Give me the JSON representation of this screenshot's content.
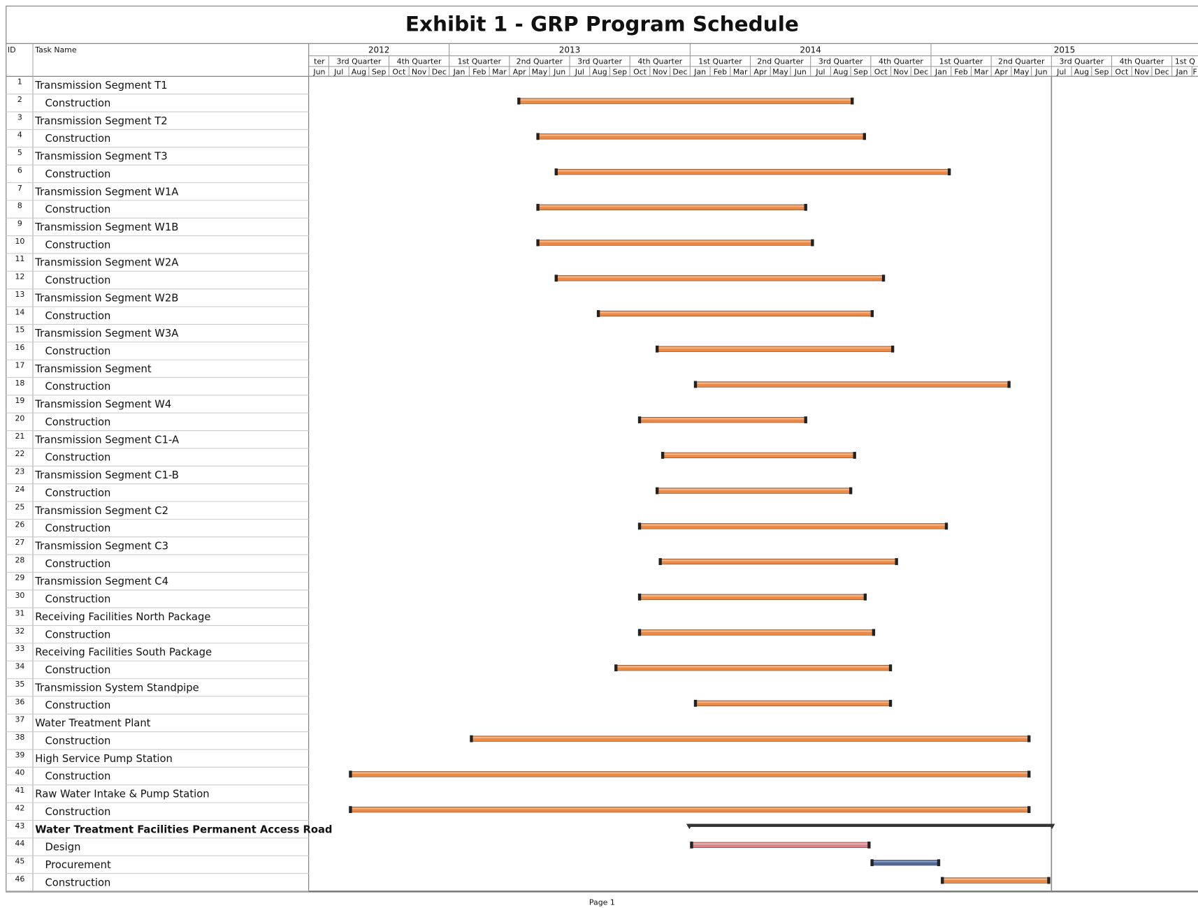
{
  "chart_data": {
    "type": "gantt",
    "title": "Exhibit 1 - GRP Program Schedule",
    "columns": [
      "ID",
      "Task Name"
    ],
    "footer": "Page 1",
    "xlim": [
      2012.4167,
      2016.1083
    ],
    "current_date": 2015.5,
    "year_ticks": [
      {
        "value": 2012.4167,
        "label": "2012"
      },
      2013,
      2014,
      2015
    ],
    "quarter_ticks": [
      {
        "value": 2012.4167,
        "label": "ter"
      },
      {
        "value": 2012.5,
        "label": "3rd Quarter"
      },
      {
        "value": 2012.75,
        "label": "4th Quarter"
      },
      {
        "value": 2013,
        "label": "1st Quarter"
      },
      {
        "value": 2013.25,
        "label": "2nd Quarter"
      },
      {
        "value": 2013.5,
        "label": "3rd Quarter"
      },
      {
        "value": 2013.75,
        "label": "4th Quarter"
      },
      {
        "value": 2014,
        "label": "1st Quarter"
      },
      {
        "value": 2014.25,
        "label": "2nd Quarter"
      },
      {
        "value": 2014.5,
        "label": "3rd Quarter"
      },
      {
        "value": 2014.75,
        "label": "4th Quarter"
      },
      {
        "value": 2015,
        "label": "1st Quarter"
      },
      {
        "value": 2015.25,
        "label": "2nd Quarter"
      },
      {
        "value": 2015.5,
        "label": "3rd Quarter"
      },
      {
        "value": 2015.75,
        "label": "4th Quarter"
      },
      {
        "value": 2016,
        "label": "1st Q"
      }
    ],
    "month_ticks": [
      {
        "value": 2012.4167,
        "label": "Jun"
      },
      {
        "value": 2012.5,
        "label": "Jul"
      },
      {
        "value": 2012.5833,
        "label": "Aug"
      },
      {
        "value": 2012.6667,
        "label": "Sep"
      },
      {
        "value": 2012.75,
        "label": "Oct"
      },
      {
        "value": 2012.8333,
        "label": "Nov"
      },
      {
        "value": 2012.9167,
        "label": "Dec"
      },
      {
        "value": 2013,
        "label": "Jan"
      },
      {
        "value": 2013.0833,
        "label": "Feb"
      },
      {
        "value": 2013.1667,
        "label": "Mar"
      },
      {
        "value": 2013.25,
        "label": "Apr"
      },
      {
        "value": 2013.3333,
        "label": "May"
      },
      {
        "value": 2013.4167,
        "label": "Jun"
      },
      {
        "value": 2013.5,
        "label": "Jul"
      },
      {
        "value": 2013.5833,
        "label": "Aug"
      },
      {
        "value": 2013.6667,
        "label": "Sep"
      },
      {
        "value": 2013.75,
        "label": "Oct"
      },
      {
        "value": 2013.8333,
        "label": "Nov"
      },
      {
        "value": 2013.9167,
        "label": "Dec"
      },
      {
        "value": 2014,
        "label": "Jan"
      },
      {
        "value": 2014.0833,
        "label": "Feb"
      },
      {
        "value": 2014.1667,
        "label": "Mar"
      },
      {
        "value": 2014.25,
        "label": "Apr"
      },
      {
        "value": 2014.3333,
        "label": "May"
      },
      {
        "value": 2014.4167,
        "label": "Jun"
      },
      {
        "value": 2014.5,
        "label": "Jul"
      },
      {
        "value": 2014.5833,
        "label": "Aug"
      },
      {
        "value": 2014.6667,
        "label": "Sep"
      },
      {
        "value": 2014.75,
        "label": "Oct"
      },
      {
        "value": 2014.8333,
        "label": "Nov"
      },
      {
        "value": 2014.9167,
        "label": "Dec"
      },
      {
        "value": 2015,
        "label": "Jan"
      },
      {
        "value": 2015.0833,
        "label": "Feb"
      },
      {
        "value": 2015.1667,
        "label": "Mar"
      },
      {
        "value": 2015.25,
        "label": "Apr"
      },
      {
        "value": 2015.3333,
        "label": "May"
      },
      {
        "value": 2015.4167,
        "label": "Jun"
      },
      {
        "value": 2015.5,
        "label": "Jul"
      },
      {
        "value": 2015.5833,
        "label": "Aug"
      },
      {
        "value": 2015.6667,
        "label": "Sep"
      },
      {
        "value": 2015.75,
        "label": "Oct"
      },
      {
        "value": 2015.8333,
        "label": "Nov"
      },
      {
        "value": 2015.9167,
        "label": "Dec"
      },
      {
        "value": 2016,
        "label": "Jan"
      },
      {
        "value": 2016.0833,
        "label": "F"
      }
    ],
    "tasks": [
      {
        "id": 1,
        "name": "Transmission Segment T1",
        "level": 0
      },
      {
        "id": 2,
        "name": "Construction",
        "level": 1,
        "start": 2013.286,
        "end": 2014.676,
        "color": "#ec8a45"
      },
      {
        "id": 3,
        "name": "Transmission Segment T2",
        "level": 0
      },
      {
        "id": 4,
        "name": "Construction",
        "level": 1,
        "start": 2013.365,
        "end": 2014.727,
        "color": "#ec8a45"
      },
      {
        "id": 5,
        "name": "Transmission Segment T3",
        "level": 0
      },
      {
        "id": 6,
        "name": "Construction",
        "level": 1,
        "start": 2013.441,
        "end": 2015.079,
        "color": "#ec8a45"
      },
      {
        "id": 7,
        "name": "Transmission Segment W1A",
        "level": 0
      },
      {
        "id": 8,
        "name": "Construction",
        "level": 1,
        "start": 2013.365,
        "end": 2014.483,
        "color": "#ec8a45"
      },
      {
        "id": 9,
        "name": "Transmission Segment W1B",
        "level": 0
      },
      {
        "id": 10,
        "name": "Construction",
        "level": 1,
        "start": 2013.365,
        "end": 2014.511,
        "color": "#ec8a45"
      },
      {
        "id": 11,
        "name": "Transmission Segment W2A",
        "level": 0
      },
      {
        "id": 12,
        "name": "Construction",
        "level": 1,
        "start": 2013.441,
        "end": 2014.806,
        "color": "#ec8a45"
      },
      {
        "id": 13,
        "name": "Transmission Segment W2B",
        "level": 0
      },
      {
        "id": 14,
        "name": "Construction",
        "level": 1,
        "start": 2013.616,
        "end": 2014.759,
        "color": "#ec8a45"
      },
      {
        "id": 15,
        "name": "Transmission Segment W3A",
        "level": 0
      },
      {
        "id": 16,
        "name": "Construction",
        "level": 1,
        "start": 2013.86,
        "end": 2014.844,
        "color": "#ec8a45"
      },
      {
        "id": 17,
        "name": "Transmission Segment",
        "level": 0
      },
      {
        "id": 18,
        "name": "Construction",
        "level": 1,
        "start": 2014.019,
        "end": 2015.327,
        "color": "#ec8a45"
      },
      {
        "id": 19,
        "name": "Transmission Segment W4",
        "level": 0
      },
      {
        "id": 20,
        "name": "Construction",
        "level": 1,
        "start": 2013.787,
        "end": 2014.483,
        "color": "#ec8a45"
      },
      {
        "id": 21,
        "name": "Transmission Segment C1-A",
        "level": 0
      },
      {
        "id": 22,
        "name": "Construction",
        "level": 1,
        "start": 2013.883,
        "end": 2014.686,
        "color": "#ec8a45"
      },
      {
        "id": 23,
        "name": "Transmission Segment C1-B",
        "level": 0
      },
      {
        "id": 24,
        "name": "Construction",
        "level": 1,
        "start": 2013.86,
        "end": 2014.67,
        "color": "#ec8a45"
      },
      {
        "id": 25,
        "name": "Transmission Segment C2",
        "level": 0
      },
      {
        "id": 26,
        "name": "Construction",
        "level": 1,
        "start": 2013.787,
        "end": 2015.067,
        "color": "#ec8a45"
      },
      {
        "id": 27,
        "name": "Transmission Segment C3",
        "level": 0
      },
      {
        "id": 28,
        "name": "Construction",
        "level": 1,
        "start": 2013.873,
        "end": 2014.86,
        "color": "#ec8a45"
      },
      {
        "id": 29,
        "name": "Transmission Segment C4",
        "level": 0
      },
      {
        "id": 30,
        "name": "Construction",
        "level": 1,
        "start": 2013.787,
        "end": 2014.73,
        "color": "#ec8a45"
      },
      {
        "id": 31,
        "name": "Receiving Facilities North Package",
        "level": 0
      },
      {
        "id": 32,
        "name": "Construction",
        "level": 1,
        "start": 2013.787,
        "end": 2014.765,
        "color": "#ec8a45"
      },
      {
        "id": 33,
        "name": "Receiving Facilities South Package",
        "level": 0
      },
      {
        "id": 34,
        "name": "Construction",
        "level": 1,
        "start": 2013.689,
        "end": 2014.835,
        "color": "#ec8a45"
      },
      {
        "id": 35,
        "name": "Transmission System Standpipe",
        "level": 0
      },
      {
        "id": 36,
        "name": "Construction",
        "level": 1,
        "start": 2014.019,
        "end": 2014.835,
        "color": "#ec8a45"
      },
      {
        "id": 37,
        "name": "Water Treatment Plant",
        "level": 0
      },
      {
        "id": 38,
        "name": "Construction",
        "level": 1,
        "start": 2013.089,
        "end": 2015.41,
        "color": "#ec8a45"
      },
      {
        "id": 39,
        "name": "High Service Pump Station",
        "level": 0
      },
      {
        "id": 40,
        "name": "Construction",
        "level": 1,
        "start": 2012.587,
        "end": 2015.41,
        "color": "#ec8a45"
      },
      {
        "id": 41,
        "name": "Raw Water Intake & Pump Station",
        "level": 0
      },
      {
        "id": 42,
        "name": "Construction",
        "level": 1,
        "start": 2012.587,
        "end": 2015.41,
        "color": "#ec8a45"
      },
      {
        "id": 43,
        "name": "Water Treatment Facilities Permanent Access Road",
        "level": 0,
        "bold": true,
        "summary": true,
        "start": 2013.997,
        "end": 2015.502,
        "color": "#333333"
      },
      {
        "id": 44,
        "name": "Design",
        "level": 1,
        "start": 2014.003,
        "end": 2014.746,
        "color": "#d9848c"
      },
      {
        "id": 45,
        "name": "Procurement",
        "level": 1,
        "start": 2014.752,
        "end": 2015.035,
        "color": "#4a6a9c"
      },
      {
        "id": 46,
        "name": "Construction",
        "level": 1,
        "start": 2015.044,
        "end": 2015.492,
        "color": "#ec8a45"
      }
    ]
  }
}
